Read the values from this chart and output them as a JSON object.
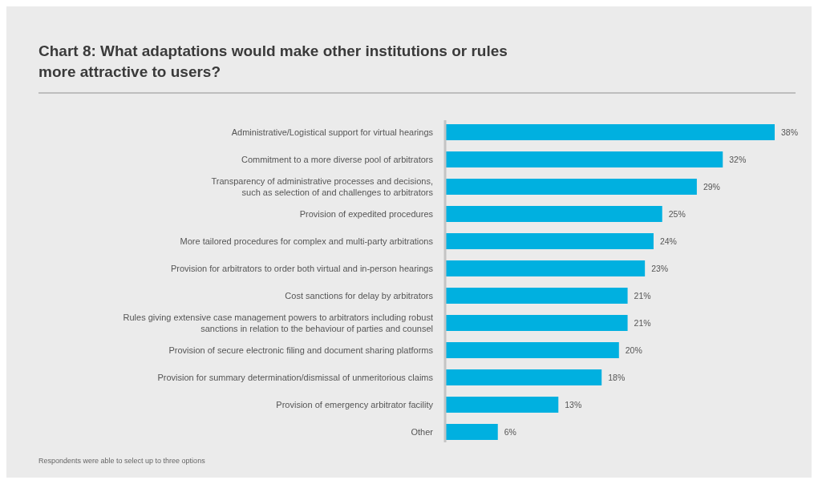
{
  "chart_data": {
    "type": "bar",
    "orientation": "horizontal",
    "title": "Chart 8: What adaptations would make other institutions or rules\nmore attractive to users?",
    "categories": [
      "Administrative/Logistical support for virtual hearings",
      "Commitment to a more diverse pool of arbitrators",
      "Transparency of administrative processes and decisions,\nsuch as selection of and challenges to arbitrators",
      "Provision of expedited procedures",
      "More tailored procedures for complex and multi-party arbitrations",
      "Provision for arbitrators to order both virtual and in-person hearings",
      "Cost sanctions for delay by arbitrators",
      "Rules giving extensive case management powers to arbitrators including robust\nsanctions in relation to the behaviour of parties and counsel",
      "Provision of secure electronic filing and document sharing platforms",
      "Provision for summary determination/dismissal of unmeritorious claims",
      "Provision of emergency arbitrator facility",
      "Other"
    ],
    "values": [
      38,
      32,
      29,
      25,
      24,
      23,
      21,
      21,
      20,
      18,
      13,
      6
    ],
    "value_labels": [
      "38%",
      "32%",
      "29%",
      "25%",
      "24%",
      "23%",
      "21%",
      "21%",
      "20%",
      "18%",
      "13%",
      "6%"
    ],
    "color": "#00b0e0",
    "tick_labels": "y",
    "annotations": [
      "Respondents were able to select up to three options"
    ]
  }
}
